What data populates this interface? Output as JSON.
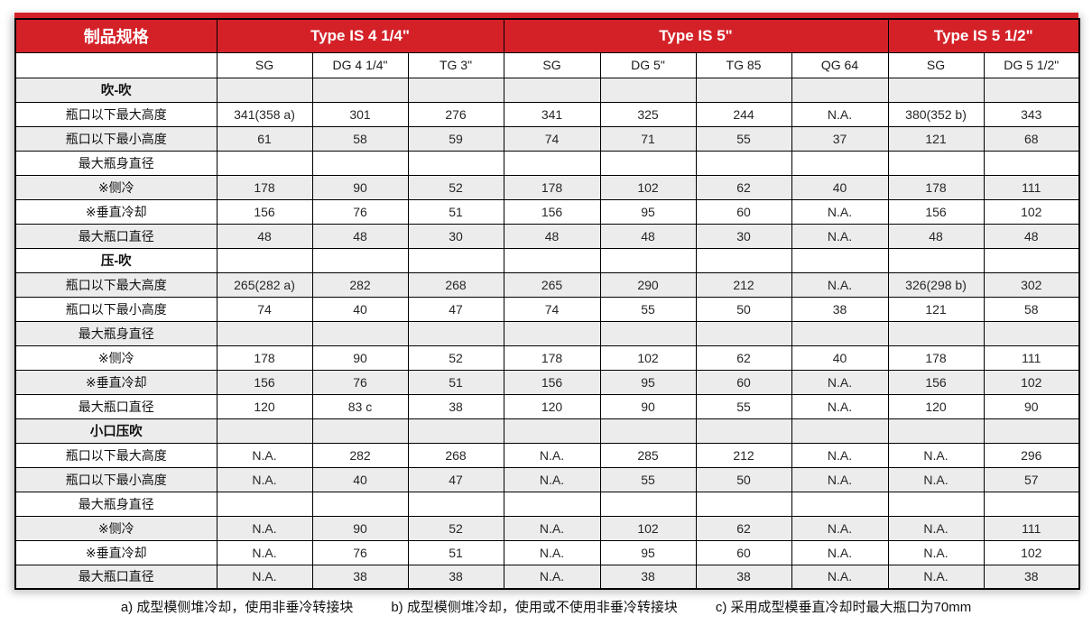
{
  "table": {
    "corner_label": "制品规格",
    "groups": [
      {
        "label": "Type IS 4 1/4\"",
        "span": 3
      },
      {
        "label": "Type IS 5\"",
        "span": 4
      },
      {
        "label": "Type IS 5 1/2\"",
        "span": 2
      }
    ],
    "subheaders": [
      "SG",
      "DG 4 1/4\"",
      "TG 3\"",
      "SG",
      "DG 5\"",
      "TG 85",
      "QG 64",
      "SG",
      "DG 5 1/2\""
    ],
    "rows": [
      {
        "type": "section",
        "label": "吹-吹",
        "values": [
          "",
          "",
          "",
          "",
          "",
          "",
          "",
          "",
          ""
        ]
      },
      {
        "type": "data",
        "label": "瓶口以下最大高度",
        "values": [
          "341(358 a)",
          "301",
          "276",
          "341",
          "325",
          "244",
          "N.A.",
          "380(352 b)",
          "343"
        ]
      },
      {
        "type": "data",
        "label": "瓶口以下最小高度",
        "values": [
          "61",
          "58",
          "59",
          "74",
          "71",
          "55",
          "37",
          "121",
          "68"
        ]
      },
      {
        "type": "data",
        "label": "最大瓶身直径",
        "values": [
          "",
          "",
          "",
          "",
          "",
          "",
          "",
          "",
          ""
        ]
      },
      {
        "type": "data",
        "label": "※侧冷",
        "values": [
          "178",
          "90",
          "52",
          "178",
          "102",
          "62",
          "40",
          "178",
          "111"
        ]
      },
      {
        "type": "data",
        "label": "※垂直冷却",
        "values": [
          "156",
          "76",
          "51",
          "156",
          "95",
          "60",
          "N.A.",
          "156",
          "102"
        ]
      },
      {
        "type": "data",
        "label": "最大瓶口直径",
        "values": [
          "48",
          "48",
          "30",
          "48",
          "48",
          "30",
          "N.A.",
          "48",
          "48"
        ]
      },
      {
        "type": "section",
        "label": "压-吹",
        "values": [
          "",
          "",
          "",
          "",
          "",
          "",
          "",
          "",
          ""
        ]
      },
      {
        "type": "data",
        "label": "瓶口以下最大高度",
        "values": [
          "265(282 a)",
          "282",
          "268",
          "265",
          "290",
          "212",
          "N.A.",
          "326(298 b)",
          "302"
        ]
      },
      {
        "type": "data",
        "label": "瓶口以下最小高度",
        "values": [
          "74",
          "40",
          "47",
          "74",
          "55",
          "50",
          "38",
          "121",
          "58"
        ]
      },
      {
        "type": "data",
        "label": "最大瓶身直径",
        "values": [
          "",
          "",
          "",
          "",
          "",
          "",
          "",
          "",
          ""
        ]
      },
      {
        "type": "data",
        "label": "※侧冷",
        "values": [
          "178",
          "90",
          "52",
          "178",
          "102",
          "62",
          "40",
          "178",
          "111"
        ]
      },
      {
        "type": "data",
        "label": "※垂直冷却",
        "values": [
          "156",
          "76",
          "51",
          "156",
          "95",
          "60",
          "N.A.",
          "156",
          "102"
        ]
      },
      {
        "type": "data",
        "label": "最大瓶口直径",
        "values": [
          "120",
          "83 c",
          "38",
          "120",
          "90",
          "55",
          "N.A.",
          "120",
          "90"
        ]
      },
      {
        "type": "section",
        "label": "小口压吹",
        "values": [
          "",
          "",
          "",
          "",
          "",
          "",
          "",
          "",
          ""
        ]
      },
      {
        "type": "data",
        "label": "瓶口以下最大高度",
        "values": [
          "N.A.",
          "282",
          "268",
          "N.A.",
          "285",
          "212",
          "N.A.",
          "N.A.",
          "296"
        ]
      },
      {
        "type": "data",
        "label": "瓶口以下最小高度",
        "values": [
          "N.A.",
          "40",
          "47",
          "N.A.",
          "55",
          "50",
          "N.A.",
          "N.A.",
          "57"
        ]
      },
      {
        "type": "data",
        "label": "最大瓶身直径",
        "values": [
          "",
          "",
          "",
          "",
          "",
          "",
          "",
          "",
          ""
        ]
      },
      {
        "type": "data",
        "label": "※侧冷",
        "values": [
          "N.A.",
          "90",
          "52",
          "N.A.",
          "102",
          "62",
          "N.A.",
          "N.A.",
          "111"
        ]
      },
      {
        "type": "data",
        "label": "※垂直冷却",
        "values": [
          "N.A.",
          "76",
          "51",
          "N.A.",
          "95",
          "60",
          "N.A.",
          "N.A.",
          "102"
        ]
      },
      {
        "type": "data",
        "label": "最大瓶口直径",
        "values": [
          "N.A.",
          "38",
          "38",
          "N.A.",
          "38",
          "38",
          "N.A.",
          "N.A.",
          "38"
        ]
      }
    ]
  },
  "footnotes": [
    "a) 成型模侧堆冷却，使用非垂冷转接块",
    "b) 成型模侧堆冷却，使用或不使用非垂冷转接块",
    "c) 采用成型模垂直冷却时最大瓶口为70mm"
  ],
  "colors": {
    "header_red": "#d42128",
    "stripe_gray": "#ececec",
    "border_black": "#000000"
  }
}
